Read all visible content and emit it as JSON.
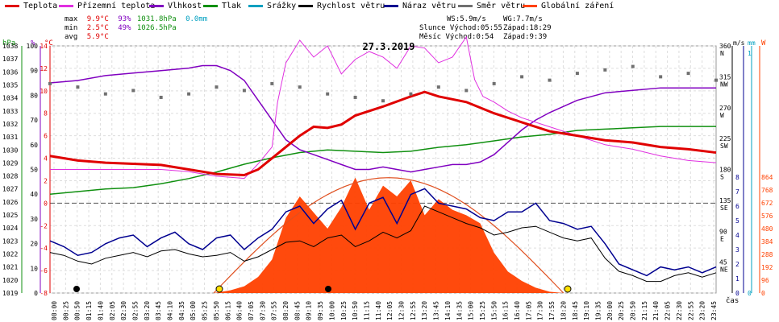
{
  "chart_data": {
    "type": "line",
    "title": "27.3.2019",
    "xlabel": "čas",
    "legend": [
      {
        "name": "Teplota",
        "color": "#e00000"
      },
      {
        "name": "Přízemní teplota",
        "color": "#e030e0"
      },
      {
        "name": "Vlhkost",
        "color": "#8000c0"
      },
      {
        "name": "Tlak",
        "color": "#109010"
      },
      {
        "name": "Srážky",
        "color": "#00a0c0"
      },
      {
        "name": "Rychlost větru",
        "color": "#000000"
      },
      {
        "name": "Náraz větru",
        "color": "#000090"
      },
      {
        "name": "Směr větru",
        "color": "#707070"
      },
      {
        "name": "Globální záření",
        "color": "#ff4000"
      }
    ],
    "stats": {
      "max_label": "max",
      "max_temp": "9.9°C",
      "max_hum": "93%",
      "max_press": "1031.8hPa",
      "max_rain": "0.0mm",
      "min_label": "min",
      "min_temp": "2.5°C",
      "min_hum": "49%",
      "min_press": "1026.5hPa",
      "avg_label": "avg",
      "avg_temp": "5.9°C"
    },
    "wind_info": {
      "ws": "WS:5.9m/s",
      "wg": "WG:7.7m/s"
    },
    "sun_info": {
      "sunrise": "Slunce Východ:05:55",
      "sunset": "Západ:18:29"
    },
    "moon_info": {
      "moonrise": "Měsíc Východ:0:54",
      "moonset": "Západ:9:39"
    },
    "x_ticks": [
      "00:00",
      "00:25",
      "00:50",
      "01:15",
      "01:40",
      "02:05",
      "02:30",
      "02:55",
      "03:20",
      "03:45",
      "04:10",
      "04:35",
      "05:00",
      "05:25",
      "05:50",
      "06:15",
      "06:40",
      "07:05",
      "07:30",
      "07:55",
      "08:20",
      "08:45",
      "09:10",
      "09:35",
      "10:00",
      "10:25",
      "10:50",
      "11:15",
      "11:40",
      "12:05",
      "12:30",
      "12:55",
      "13:20",
      "13:45",
      "14:10",
      "14:35",
      "15:00",
      "15:25",
      "15:50",
      "16:15",
      "16:40",
      "17:05",
      "17:30",
      "17:55",
      "18:20",
      "18:45",
      "19:10",
      "19:35",
      "20:00",
      "20:25",
      "20:50",
      "21:15",
      "21:40",
      "22:05",
      "22:30",
      "22:55",
      "23:20",
      "23:45"
    ],
    "axis_hpa": {
      "unit": "hPa",
      "ticks": [
        1019,
        1020,
        1021,
        1022,
        1023,
        1024,
        1025,
        1026,
        1027,
        1028,
        1029,
        1030,
        1031,
        1032,
        1033,
        1034,
        1035,
        1036,
        1037,
        1038
      ]
    },
    "axis_pct": {
      "unit": "%",
      "ticks": [
        0,
        10,
        20,
        30,
        40,
        50,
        60,
        70,
        80,
        90,
        100
      ]
    },
    "axis_temp": {
      "unit": "°C",
      "ticks": [
        -8,
        -6,
        -4,
        -2,
        0,
        2,
        4,
        6,
        8,
        10,
        12,
        14
      ]
    },
    "axis_dir": {
      "ticks": [
        "NE 45",
        "E 90",
        "SE 135",
        "S 180",
        "SW 225",
        "W 270",
        "NW 315",
        "N 360"
      ]
    },
    "axis_ms": {
      "unit": "m/s",
      "ticks": [
        0,
        1,
        2,
        3,
        4,
        5,
        6,
        7,
        8
      ]
    },
    "axis_mm": {
      "unit": "mm",
      "ticks": [
        0,
        1
      ]
    },
    "axis_w": {
      "unit": "W",
      "ticks": [
        0,
        96,
        192,
        288,
        384,
        480,
        576,
        672,
        768,
        864
      ]
    },
    "series": [
      {
        "name": "Teplota",
        "color": "#e00000",
        "x": [
          0,
          1,
          2,
          3,
          4,
          5,
          6,
          7,
          7.5,
          8,
          8.5,
          9,
          9.5,
          10,
          10.5,
          11,
          12,
          13,
          13.5,
          14,
          15,
          16,
          17,
          18,
          19,
          20,
          21,
          22,
          23,
          24
        ],
        "y": [
          4.2,
          3.8,
          3.6,
          3.5,
          3.4,
          3.0,
          2.6,
          2.5,
          3.0,
          4.0,
          5.0,
          6.0,
          6.8,
          6.7,
          7.0,
          7.8,
          8.6,
          9.5,
          9.9,
          9.5,
          9.0,
          8.0,
          7.2,
          6.4,
          6.0,
          5.6,
          5.4,
          5.0,
          4.8,
          4.5
        ]
      },
      {
        "name": "Přízemní teplota",
        "color": "#e030e0",
        "x": [
          0,
          1,
          2,
          3,
          4,
          5,
          6,
          7,
          7.5,
          8,
          8.2,
          8.5,
          9,
          9.5,
          10,
          10.5,
          11,
          11.5,
          12,
          12.5,
          13,
          13.5,
          14,
          14.5,
          15,
          15.3,
          15.6,
          16,
          16.5,
          17,
          18,
          19,
          20,
          21,
          22,
          23,
          24
        ],
        "y": [
          3.0,
          3.0,
          3.0,
          3.0,
          3.0,
          2.8,
          2.4,
          2.2,
          3.5,
          5.0,
          9.0,
          12.5,
          14.5,
          13.0,
          14.0,
          11.5,
          12.8,
          13.5,
          13.0,
          12.0,
          14.0,
          13.8,
          12.5,
          13.0,
          14.8,
          11.0,
          9.5,
          9.0,
          8.2,
          7.6,
          6.8,
          6.0,
          5.2,
          4.8,
          4.2,
          3.8,
          3.6
        ]
      },
      {
        "name": "Vlhkost",
        "color": "#8000c0",
        "x": [
          0,
          1,
          2,
          3,
          4,
          5,
          5.5,
          6,
          6.5,
          7,
          7.5,
          8,
          8.5,
          9,
          9.5,
          10,
          10.5,
          11,
          11.5,
          12,
          12.5,
          13,
          13.5,
          14,
          14.5,
          15,
          15.5,
          16,
          16.5,
          17,
          17.5,
          18,
          19,
          20,
          21,
          22,
          23,
          24
        ],
        "y": [
          85,
          86,
          88,
          89,
          90,
          91,
          92,
          92,
          90,
          86,
          78,
          70,
          62,
          58,
          56,
          54,
          52,
          50,
          50,
          51,
          50,
          49,
          50,
          51,
          52,
          52,
          53,
          56,
          61,
          66,
          70,
          73,
          78,
          81,
          82,
          83,
          83,
          83
        ]
      },
      {
        "name": "Tlak",
        "color": "#109010",
        "x": [
          0,
          1,
          2,
          3,
          4,
          5,
          6,
          7,
          8,
          9,
          10,
          11,
          12,
          13,
          14,
          15,
          16,
          17,
          18,
          19,
          20,
          21,
          22,
          23,
          24
        ],
        "y": [
          1026.6,
          1026.8,
          1027.0,
          1027.1,
          1027.4,
          1027.8,
          1028.3,
          1028.9,
          1029.4,
          1029.8,
          1030.0,
          1029.9,
          1029.8,
          1029.9,
          1030.2,
          1030.4,
          1030.7,
          1031.0,
          1031.2,
          1031.5,
          1031.6,
          1031.7,
          1031.8,
          1031.8,
          1031.8
        ]
      },
      {
        "name": "Rychlost větru",
        "color": "#000000",
        "x": [
          0,
          0.5,
          1,
          1.5,
          2,
          2.5,
          3,
          3.5,
          4,
          4.5,
          5,
          5.5,
          6,
          6.5,
          7,
          7.5,
          8,
          8.5,
          9,
          9.5,
          10,
          10.5,
          11,
          11.5,
          12,
          12.5,
          13,
          13.5,
          14,
          14.5,
          15,
          15.5,
          16,
          16.5,
          17,
          17.5,
          18,
          18.5,
          19,
          19.5,
          20,
          20.5,
          21,
          21.5,
          22,
          22.5,
          23,
          23.5,
          24
        ],
        "y": [
          2.8,
          2.6,
          2.2,
          2.0,
          2.4,
          2.6,
          2.8,
          2.5,
          2.9,
          3.0,
          2.7,
          2.5,
          2.6,
          2.8,
          2.2,
          2.5,
          3.0,
          3.5,
          3.6,
          3.2,
          3.8,
          4.0,
          3.2,
          3.6,
          4.2,
          3.8,
          4.3,
          6.0,
          5.6,
          5.2,
          4.8,
          4.5,
          4.0,
          4.2,
          4.5,
          4.6,
          4.2,
          3.8,
          3.6,
          3.8,
          2.4,
          1.5,
          1.2,
          0.8,
          0.8,
          1.2,
          1.4,
          1.1,
          1.4
        ]
      },
      {
        "name": "Náraz větru",
        "color": "#000090",
        "x": [
          0,
          0.5,
          1,
          1.5,
          2,
          2.5,
          3,
          3.5,
          4,
          4.5,
          5,
          5.5,
          6,
          6.5,
          7,
          7.5,
          8,
          8.5,
          9,
          9.5,
          10,
          10.5,
          11,
          11.5,
          12,
          12.5,
          13,
          13.5,
          14,
          14.5,
          15,
          15.5,
          16,
          16.5,
          17,
          17.5,
          18,
          18.5,
          19,
          19.5,
          20,
          20.5,
          21,
          21.5,
          22,
          22.5,
          23,
          23.5,
          24
        ],
        "y": [
          3.6,
          3.2,
          2.6,
          2.8,
          3.4,
          3.8,
          4.0,
          3.2,
          3.8,
          4.2,
          3.4,
          3.0,
          3.8,
          4.0,
          3.0,
          3.8,
          4.4,
          5.6,
          6.0,
          4.8,
          5.8,
          6.4,
          4.4,
          6.2,
          6.6,
          4.8,
          6.8,
          7.2,
          6.2,
          6.0,
          5.8,
          5.2,
          5.0,
          5.6,
          5.6,
          6.2,
          5.0,
          4.8,
          4.4,
          4.6,
          3.4,
          2.0,
          1.6,
          1.2,
          1.8,
          1.6,
          1.8,
          1.4,
          1.8
        ]
      },
      {
        "name": "Globální záření",
        "color": "#ff4000",
        "x": [
          5.9,
          6.5,
          7,
          7.5,
          8,
          8.5,
          9,
          9.5,
          10,
          10.5,
          11,
          11.5,
          12,
          12.5,
          13,
          13.5,
          14,
          14.5,
          15,
          15.5,
          16,
          16.5,
          17,
          17.5,
          18,
          18.5
        ],
        "y": [
          0,
          20,
          50,
          120,
          250,
          560,
          720,
          600,
          480,
          640,
          860,
          620,
          800,
          720,
          840,
          580,
          700,
          620,
          580,
          520,
          300,
          160,
          90,
          40,
          10,
          0
        ]
      }
    ],
    "direction_series": {
      "name": "Směr větru",
      "color": "#707070",
      "x": [
        0,
        1,
        2,
        3,
        4,
        5,
        6,
        7,
        8,
        9,
        10,
        11,
        12,
        13,
        14,
        15,
        16,
        17,
        18,
        19,
        20,
        21,
        22,
        23,
        24
      ],
      "y": [
        305,
        300,
        290,
        295,
        285,
        290,
        300,
        295,
        305,
        300,
        290,
        285,
        280,
        290,
        300,
        295,
        305,
        315,
        310,
        320,
        325,
        330,
        315,
        320,
        310
      ]
    }
  }
}
